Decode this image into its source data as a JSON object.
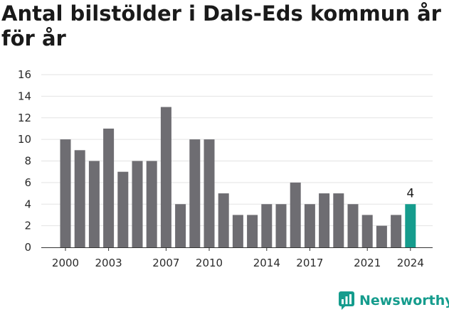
{
  "title": "Antal bilstölder i Dals-Eds kommun år för år",
  "brand": {
    "name": "Newsworthy",
    "color": "#159c8d"
  },
  "chart_data": {
    "type": "bar",
    "title": "Antal bilstölder i Dals-Eds kommun år för år",
    "xlabel": "",
    "ylabel": "",
    "categories": [
      "2000",
      "2001",
      "2002",
      "2003",
      "2004",
      "2005",
      "2006",
      "2007",
      "2008",
      "2009",
      "2010",
      "2011",
      "2012",
      "2013",
      "2014",
      "2015",
      "2016",
      "2017",
      "2018",
      "2019",
      "2020",
      "2021",
      "2022",
      "2023",
      "2024"
    ],
    "values": [
      10,
      9,
      8,
      11,
      7,
      8,
      8,
      13,
      4,
      10,
      10,
      5,
      3,
      3,
      4,
      4,
      6,
      4,
      5,
      5,
      4,
      3,
      2,
      3,
      4
    ],
    "x_tick_labels": [
      "2000",
      "2003",
      "2007",
      "2010",
      "2014",
      "2017",
      "2021",
      "2024"
    ],
    "y_ticks": [
      0,
      2,
      4,
      6,
      8,
      10,
      12,
      14,
      16
    ],
    "ylim": [
      0,
      16
    ],
    "grid": true,
    "bar_color": "#6e6d72",
    "highlight_color": "#159c8d",
    "highlight_category": "2024",
    "data_labels": [
      {
        "category": "2024",
        "text": "4"
      }
    ]
  }
}
